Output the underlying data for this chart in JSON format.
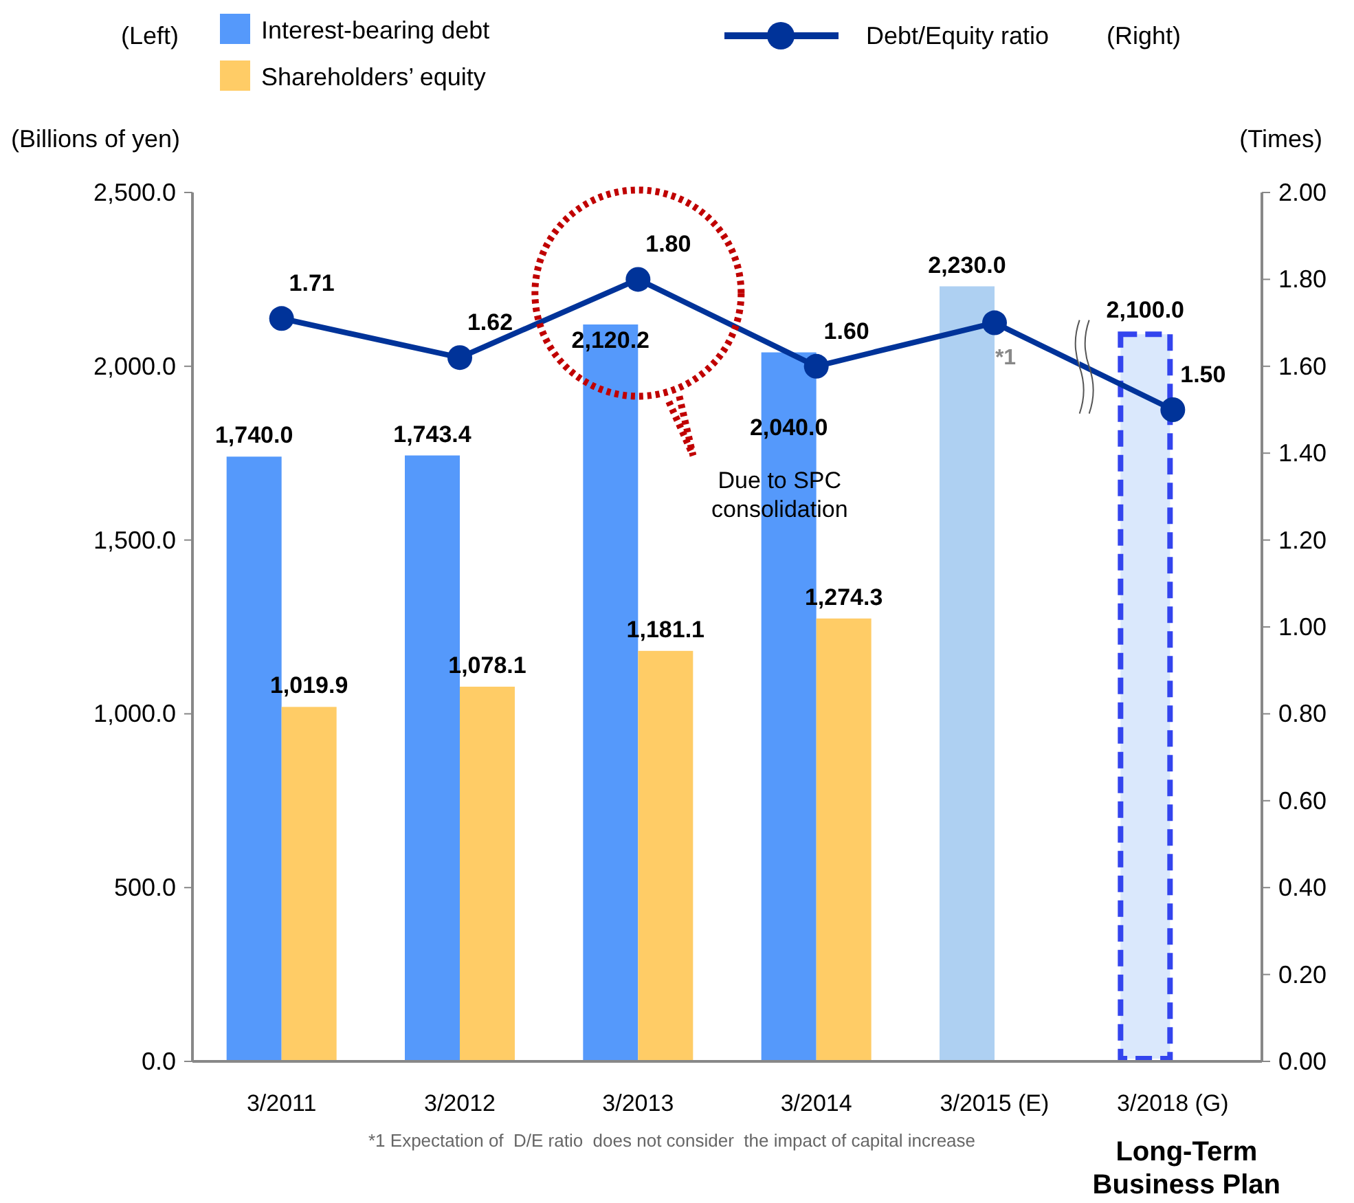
{
  "chart_data": {
    "type": "bar",
    "ylabel": "(Billions of yen)",
    "y2label": "(Times)",
    "categories": [
      "3/2011",
      "3/2012",
      "3/2013",
      "3/2014",
      "3/2015 (E)",
      "3/2018 (G)"
    ],
    "series": [
      {
        "name": "Interest-bearing debt",
        "color": "#5599fb",
        "colors": [
          "#5599fb",
          "#5599fb",
          "#5599fb",
          "#5599fb",
          "#aed0f2",
          "#dae8fc"
        ],
        "values": [
          1740.0,
          1743.4,
          2120.2,
          2040.0,
          2230.0,
          2100.0
        ],
        "value_labels": [
          "1,740.0",
          "1,743.4",
          "2,120.2",
          "2,040.0",
          "2,230.0",
          "2,100.0"
        ]
      },
      {
        "name": "Shareholders’ equity",
        "color": "#ffcc66",
        "values": [
          1019.9,
          1078.1,
          1181.1,
          1274.3,
          null,
          null
        ],
        "value_labels": [
          "1,019.9",
          "1,078.1",
          "1,181.1",
          "1,274.3",
          null,
          null
        ]
      },
      {
        "name": "Debt/Equity ratio",
        "type": "line",
        "axis": "y2",
        "color": "#003399",
        "marker": "circle",
        "values": [
          1.71,
          1.62,
          1.8,
          1.6,
          1.7,
          1.5
        ],
        "value_labels": [
          "1.71",
          "1.62",
          "1.80",
          "1.60",
          null,
          "1.50"
        ]
      }
    ],
    "ylim": [
      0,
      2500
    ],
    "yticks": [
      {
        "value": 0,
        "label": "0.0"
      },
      {
        "value": 500,
        "label": "500.0"
      },
      {
        "value": 1000,
        "label": "1,000.0"
      },
      {
        "value": 1500,
        "label": "1,500.0"
      },
      {
        "value": 2000,
        "label": "2,000.0"
      },
      {
        "value": 2500,
        "label": "2,500.0"
      }
    ],
    "y2lim": [
      0,
      2
    ],
    "y2ticks": [
      {
        "value": 0,
        "label": "0.00"
      },
      {
        "value": 0.2,
        "label": "0.20"
      },
      {
        "value": 0.4,
        "label": "0.40"
      },
      {
        "value": 0.6,
        "label": "0.60"
      },
      {
        "value": 0.8,
        "label": "0.80"
      },
      {
        "value": 1,
        "label": "1.00"
      },
      {
        "value": 1.2,
        "label": "1.20"
      },
      {
        "value": 1.4,
        "label": "1.40"
      },
      {
        "value": 1.6,
        "label": "1.60"
      },
      {
        "value": 1.8,
        "label": "1.80"
      },
      {
        "value": 2,
        "label": "2.00"
      }
    ],
    "legend": "top",
    "grid": false,
    "annotations": [
      "(Left)",
      "(Right)",
      "*1 Expectation of  D/E ratio  does not consider  the impact of capital increase",
      "Due to SPC consolidation",
      "*1",
      "Long-Term Business Plan"
    ]
  }
}
